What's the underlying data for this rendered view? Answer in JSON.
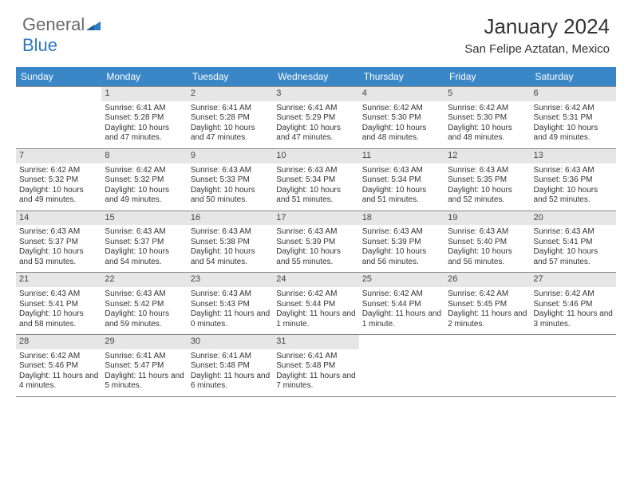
{
  "logo": {
    "text_gray": "General",
    "text_blue": "Blue"
  },
  "title": "January 2024",
  "location": "San Felipe Aztatan, Mexico",
  "colors": {
    "header_bg": "#3a87c8",
    "header_fg": "#ffffff",
    "daynum_bg": "#e6e6e6",
    "rule": "#888888",
    "logo_gray": "#6a6a6a",
    "logo_blue": "#2d7bc0"
  },
  "day_labels": [
    "Sunday",
    "Monday",
    "Tuesday",
    "Wednesday",
    "Thursday",
    "Friday",
    "Saturday"
  ],
  "first_weekday": 1,
  "days_in_month": 31,
  "days": {
    "1": {
      "sunrise": "6:41 AM",
      "sunset": "5:28 PM",
      "daylight": "10 hours and 47 minutes."
    },
    "2": {
      "sunrise": "6:41 AM",
      "sunset": "5:28 PM",
      "daylight": "10 hours and 47 minutes."
    },
    "3": {
      "sunrise": "6:41 AM",
      "sunset": "5:29 PM",
      "daylight": "10 hours and 47 minutes."
    },
    "4": {
      "sunrise": "6:42 AM",
      "sunset": "5:30 PM",
      "daylight": "10 hours and 48 minutes."
    },
    "5": {
      "sunrise": "6:42 AM",
      "sunset": "5:30 PM",
      "daylight": "10 hours and 48 minutes."
    },
    "6": {
      "sunrise": "6:42 AM",
      "sunset": "5:31 PM",
      "daylight": "10 hours and 49 minutes."
    },
    "7": {
      "sunrise": "6:42 AM",
      "sunset": "5:32 PM",
      "daylight": "10 hours and 49 minutes."
    },
    "8": {
      "sunrise": "6:42 AM",
      "sunset": "5:32 PM",
      "daylight": "10 hours and 49 minutes."
    },
    "9": {
      "sunrise": "6:43 AM",
      "sunset": "5:33 PM",
      "daylight": "10 hours and 50 minutes."
    },
    "10": {
      "sunrise": "6:43 AM",
      "sunset": "5:34 PM",
      "daylight": "10 hours and 51 minutes."
    },
    "11": {
      "sunrise": "6:43 AM",
      "sunset": "5:34 PM",
      "daylight": "10 hours and 51 minutes."
    },
    "12": {
      "sunrise": "6:43 AM",
      "sunset": "5:35 PM",
      "daylight": "10 hours and 52 minutes."
    },
    "13": {
      "sunrise": "6:43 AM",
      "sunset": "5:36 PM",
      "daylight": "10 hours and 52 minutes."
    },
    "14": {
      "sunrise": "6:43 AM",
      "sunset": "5:37 PM",
      "daylight": "10 hours and 53 minutes."
    },
    "15": {
      "sunrise": "6:43 AM",
      "sunset": "5:37 PM",
      "daylight": "10 hours and 54 minutes."
    },
    "16": {
      "sunrise": "6:43 AM",
      "sunset": "5:38 PM",
      "daylight": "10 hours and 54 minutes."
    },
    "17": {
      "sunrise": "6:43 AM",
      "sunset": "5:39 PM",
      "daylight": "10 hours and 55 minutes."
    },
    "18": {
      "sunrise": "6:43 AM",
      "sunset": "5:39 PM",
      "daylight": "10 hours and 56 minutes."
    },
    "19": {
      "sunrise": "6:43 AM",
      "sunset": "5:40 PM",
      "daylight": "10 hours and 56 minutes."
    },
    "20": {
      "sunrise": "6:43 AM",
      "sunset": "5:41 PM",
      "daylight": "10 hours and 57 minutes."
    },
    "21": {
      "sunrise": "6:43 AM",
      "sunset": "5:41 PM",
      "daylight": "10 hours and 58 minutes."
    },
    "22": {
      "sunrise": "6:43 AM",
      "sunset": "5:42 PM",
      "daylight": "10 hours and 59 minutes."
    },
    "23": {
      "sunrise": "6:43 AM",
      "sunset": "5:43 PM",
      "daylight": "11 hours and 0 minutes."
    },
    "24": {
      "sunrise": "6:42 AM",
      "sunset": "5:44 PM",
      "daylight": "11 hours and 1 minute."
    },
    "25": {
      "sunrise": "6:42 AM",
      "sunset": "5:44 PM",
      "daylight": "11 hours and 1 minute."
    },
    "26": {
      "sunrise": "6:42 AM",
      "sunset": "5:45 PM",
      "daylight": "11 hours and 2 minutes."
    },
    "27": {
      "sunrise": "6:42 AM",
      "sunset": "5:46 PM",
      "daylight": "11 hours and 3 minutes."
    },
    "28": {
      "sunrise": "6:42 AM",
      "sunset": "5:46 PM",
      "daylight": "11 hours and 4 minutes."
    },
    "29": {
      "sunrise": "6:41 AM",
      "sunset": "5:47 PM",
      "daylight": "11 hours and 5 minutes."
    },
    "30": {
      "sunrise": "6:41 AM",
      "sunset": "5:48 PM",
      "daylight": "11 hours and 6 minutes."
    },
    "31": {
      "sunrise": "6:41 AM",
      "sunset": "5:48 PM",
      "daylight": "11 hours and 7 minutes."
    }
  },
  "labels": {
    "sunrise": "Sunrise:",
    "sunset": "Sunset:",
    "daylight": "Daylight:"
  }
}
